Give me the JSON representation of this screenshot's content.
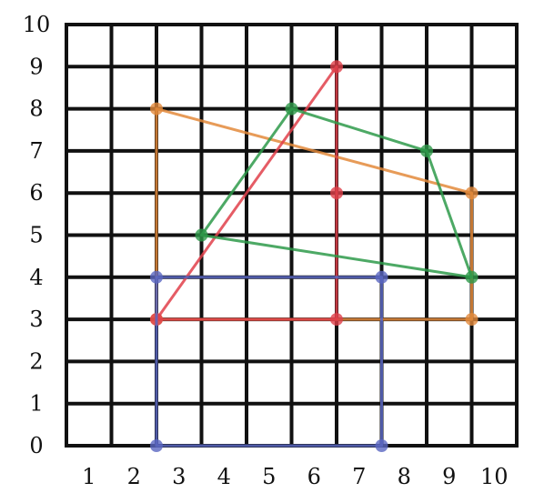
{
  "chart_data": {
    "type": "grid_drawing",
    "title": "",
    "xlabel": "",
    "ylabel": "",
    "xlim": [
      0,
      10
    ],
    "ylim": [
      0,
      10
    ],
    "x_tick_labels": [
      "1",
      "2",
      "3",
      "4",
      "5",
      "6",
      "7",
      "8",
      "9",
      "10"
    ],
    "y_tick_labels": [
      "0",
      "1",
      "2",
      "3",
      "4",
      "5",
      "6",
      "7",
      "8",
      "9",
      "10"
    ],
    "grid": true,
    "shapes": [
      {
        "color": "#e38a3b",
        "points": [
          [
            2,
            3
          ],
          [
            2,
            8
          ],
          [
            9,
            6
          ],
          [
            9,
            3
          ]
        ],
        "closed": true
      },
      {
        "color": "#e0404a",
        "points": [
          [
            2,
            3
          ],
          [
            6,
            9
          ],
          [
            6,
            6
          ],
          [
            6,
            3
          ]
        ],
        "closed": true
      },
      {
        "color": "#2e9a4a",
        "points": [
          [
            3,
            5
          ],
          [
            5,
            8
          ],
          [
            8,
            7
          ],
          [
            9,
            4
          ]
        ],
        "closed": true
      },
      {
        "color": "#5a67c2",
        "points": [
          [
            2,
            0
          ],
          [
            2,
            4
          ],
          [
            7,
            4
          ],
          [
            7,
            0
          ]
        ],
        "closed": true
      }
    ]
  }
}
